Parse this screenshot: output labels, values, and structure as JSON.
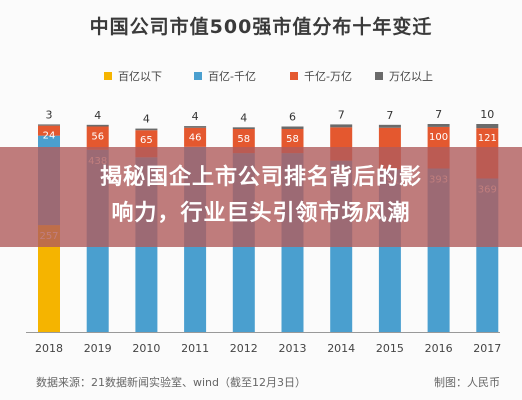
{
  "chart_data": {
    "type": "bar",
    "stacked": true,
    "title": "中国公司市值500强市值分布十年变迁",
    "categories": [
      "2018",
      "2019",
      "2010",
      "2011",
      "2012",
      "2013",
      "2014",
      "2015",
      "2016",
      "2017"
    ],
    "series": [
      {
        "name": "百亿以下",
        "color": "#f5b400",
        "values": [
          257,
          0,
          0,
          0,
          0,
          0,
          0,
          0,
          0,
          0
        ]
      },
      {
        "name": "百亿-千亿",
        "color": "#4a9fcf",
        "values": [
          215,
          438,
          420,
          445,
          430,
          430,
          412,
          391,
          393,
          369
        ]
      },
      {
        "name": "千亿-万亿",
        "color": "#e4582f",
        "values": [
          24,
          56,
          65,
          46,
          58,
          58,
          80,
          100,
          100,
          121
        ]
      },
      {
        "name": "万亿以上",
        "color": "#6a6a6a",
        "values": [
          3,
          4,
          4,
          4,
          4,
          6,
          7,
          7,
          7,
          10
        ]
      }
    ],
    "labels_shown": {
      "百亿以下": [
        257,
        null,
        null,
        null,
        null,
        null,
        null,
        null,
        null,
        null
      ],
      "百亿-千亿": [
        null,
        438,
        null,
        null,
        null,
        null,
        412,
        391,
        393,
        369
      ],
      "千亿-万亿": [
        24,
        56,
        65,
        46,
        58,
        58,
        null,
        null,
        100,
        121
      ],
      "万亿以上": [
        3,
        4,
        4,
        4,
        4,
        6,
        7,
        7,
        7,
        10
      ]
    },
    "ylim": [
      0,
      500
    ],
    "legend_position": "top"
  },
  "overlay": {
    "line1": "揭秘国企上市公司排名背后的影",
    "line2": "响力，行业巨头引领市场风潮"
  },
  "footer": {
    "source": "数据来源：21数据新闻实验室、wind（截至12月3日）",
    "credit": "制图：人民币"
  }
}
